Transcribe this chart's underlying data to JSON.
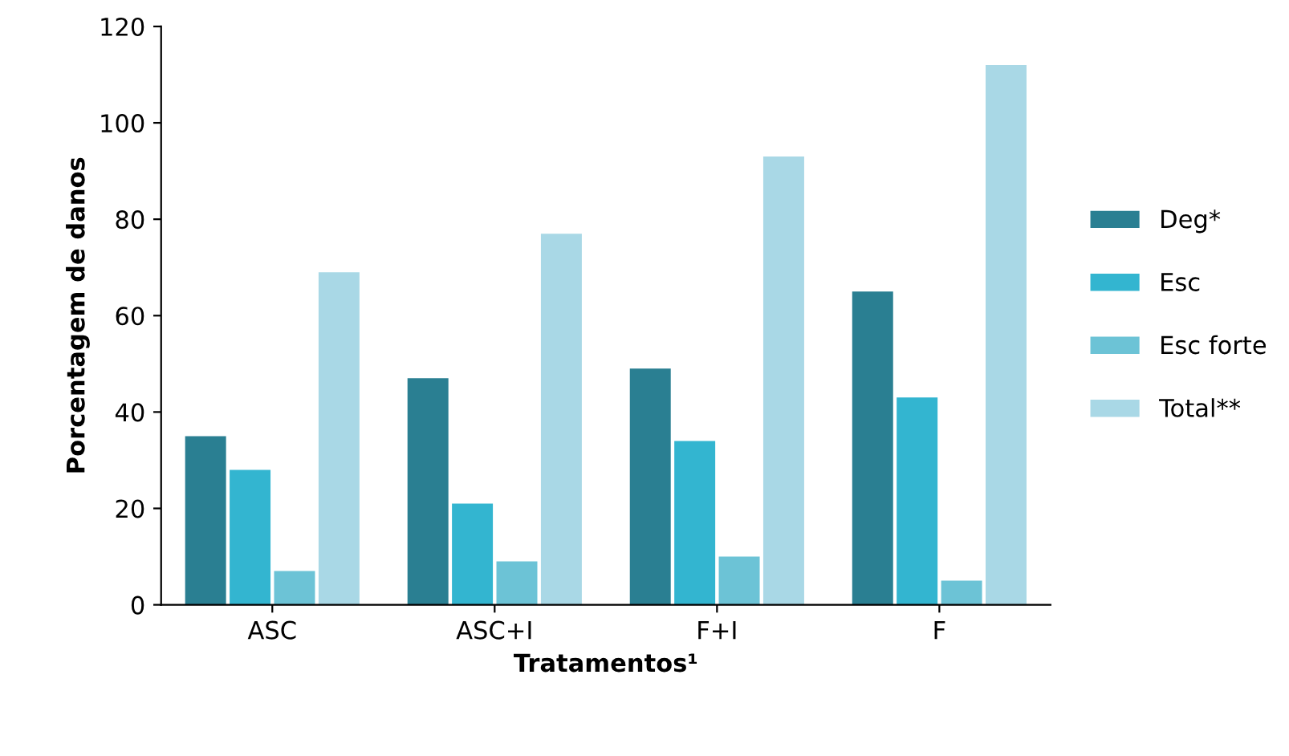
{
  "chart_data": {
    "type": "bar",
    "xlabel": "Tratamentos¹",
    "ylabel": "Porcentagem de danos",
    "categories": [
      "ASC",
      "ASC+I",
      "F+I",
      "F"
    ],
    "series": [
      {
        "name": "Deg*",
        "color": "#2a7f92",
        "values": [
          35,
          47,
          49,
          65
        ]
      },
      {
        "name": "Esc",
        "color": "#33b5d0",
        "values": [
          28,
          21,
          34,
          43
        ]
      },
      {
        "name": "Esc forte",
        "color": "#6cc3d6",
        "values": [
          7,
          9,
          10,
          5
        ]
      },
      {
        "name": "Total**",
        "color": "#a9d8e6",
        "values": [
          69,
          77,
          93,
          112
        ]
      }
    ],
    "ylim": [
      0,
      120
    ],
    "yticks": [
      0,
      20,
      40,
      60,
      80,
      100,
      120
    ],
    "grid": false,
    "legend": "right"
  }
}
